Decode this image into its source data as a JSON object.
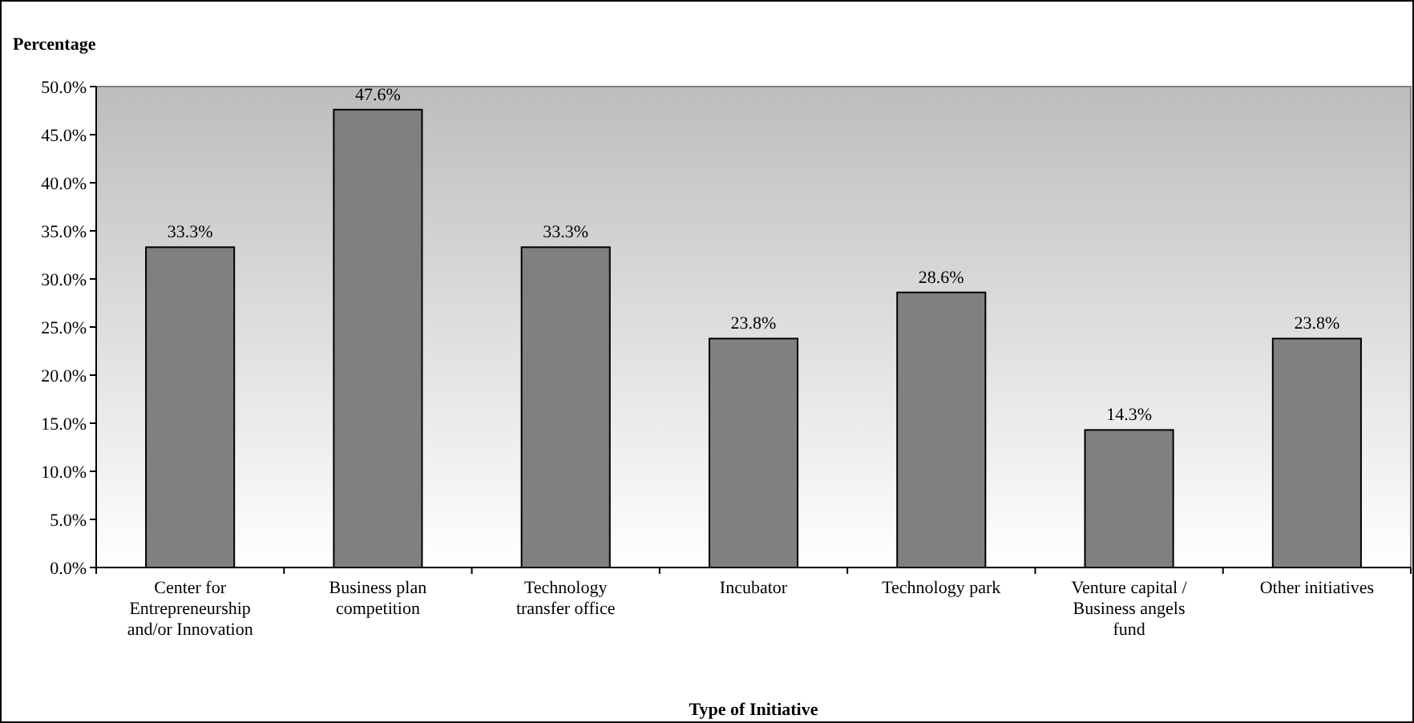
{
  "chart_data": {
    "type": "bar",
    "ylabel": "Percentage",
    "xlabel": "Type of Initiative",
    "categories": [
      "Center for Entrepreneurship and/or Innovation",
      "Business plan competition",
      "Technology transfer office",
      "Incubator",
      "Technology park",
      "Venture capital / Business angels fund",
      "Other initiatives"
    ],
    "values": [
      33.3,
      47.6,
      33.3,
      23.8,
      28.6,
      14.3,
      23.8
    ],
    "value_labels": [
      "33.3%",
      "47.6%",
      "33.3%",
      "23.8%",
      "28.6%",
      "14.3%",
      "23.8%"
    ],
    "color": "#808080",
    "ylim": [
      0,
      50
    ],
    "yticks": [
      {
        "value": 0,
        "label": "0.0%"
      },
      {
        "value": 5,
        "label": "5.0%"
      },
      {
        "value": 10,
        "label": "10.0%"
      },
      {
        "value": 15,
        "label": "15.0%"
      },
      {
        "value": 20,
        "label": "20.0%"
      },
      {
        "value": 25,
        "label": "25.0%"
      },
      {
        "value": 30,
        "label": "30.0%"
      },
      {
        "value": 35,
        "label": "35.0%"
      },
      {
        "value": 40,
        "label": "40.0%"
      },
      {
        "value": 45,
        "label": "45.0%"
      },
      {
        "value": 50,
        "label": "50.0%"
      }
    ],
    "grid": false
  }
}
